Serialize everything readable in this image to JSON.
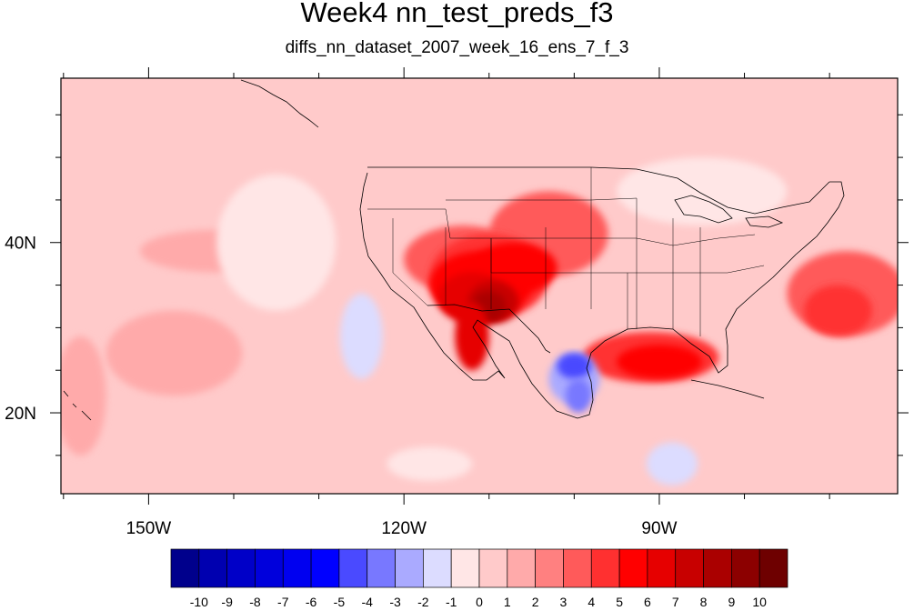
{
  "figure": {
    "title": "Week4 nn_test_preds_f3",
    "subtitle": "diffs_nn_dataset_2007_week_16_ens_7_f_3"
  },
  "chart_data": {
    "type": "heatmap",
    "projection": "cylindrical-equidistant map",
    "lon_range": [
      -160.3,
      -62
    ],
    "lat_range": [
      10.5,
      59.3
    ],
    "x_ticks": [
      {
        "value": -150,
        "label": "150W"
      },
      {
        "value": -120,
        "label": "120W"
      },
      {
        "value": -90,
        "label": "90W"
      }
    ],
    "y_ticks": [
      {
        "value": 20,
        "label": "20N"
      },
      {
        "value": 40,
        "label": "40N"
      }
    ],
    "colorbar": {
      "levels": [
        -10,
        -9,
        -8,
        -7,
        -6,
        -5,
        -4,
        -3,
        -2,
        -1,
        0,
        1,
        2,
        3,
        4,
        5,
        6,
        7,
        8,
        9,
        10
      ],
      "labels": [
        "-10",
        "-9",
        "-8",
        "-7",
        "-6",
        "-5",
        "-4",
        "-3",
        "-2",
        "-1",
        "0",
        "1",
        "2",
        "3",
        "4",
        "5",
        "6",
        "7",
        "8",
        "9",
        "10"
      ],
      "colors": [
        "#00008c",
        "#0000b0",
        "#0000c8",
        "#0000dc",
        "#0000f0",
        "#0000ff",
        "#4a4aff",
        "#7878ff",
        "#aaaaff",
        "#dcdcff",
        "#ffe6e6",
        "#ffcaca",
        "#ffaaaa",
        "#ff8080",
        "#ff5a5a",
        "#ff3030",
        "#ff0000",
        "#e60000",
        "#c80000",
        "#aa0000",
        "#8c0000",
        "#6e0000"
      ]
    },
    "field_blobs": [
      {
        "lon": -103,
        "lat": 41,
        "rx": 7,
        "ry": 5,
        "value": 3
      },
      {
        "lon": -113,
        "lat": 38,
        "rx": 7,
        "ry": 4,
        "value": 3
      },
      {
        "lon": -110,
        "lat": 36,
        "rx": 7,
        "ry": 5,
        "value": 4
      },
      {
        "lon": -111,
        "lat": 35,
        "rx": 6,
        "ry": 4,
        "value": 5
      },
      {
        "lon": -107,
        "lat": 37,
        "rx": 5,
        "ry": 3,
        "value": 5
      },
      {
        "lon": -112,
        "lat": 33.5,
        "rx": 4,
        "ry": 3,
        "value": 6
      },
      {
        "lon": -109.5,
        "lat": 33,
        "rx": 3,
        "ry": 2.5,
        "value": 7
      },
      {
        "lon": -110,
        "lat": 32.5,
        "rx": 2,
        "ry": 1.8,
        "value": 8
      },
      {
        "lon": -112,
        "lat": 29,
        "rx": 2,
        "ry": 4,
        "value": 6
      },
      {
        "lon": -91,
        "lat": 26.5,
        "rx": 8,
        "ry": 3,
        "value": 4
      },
      {
        "lon": -90,
        "lat": 26,
        "rx": 5,
        "ry": 2,
        "value": 5
      },
      {
        "lon": -68,
        "lat": 34,
        "rx": 7,
        "ry": 5,
        "value": 3
      },
      {
        "lon": -69,
        "lat": 32,
        "rx": 4,
        "ry": 3,
        "value": 4
      },
      {
        "lon": -100,
        "lat": 24,
        "rx": 3,
        "ry": 3,
        "value": -3
      },
      {
        "lon": -100,
        "lat": 25.5,
        "rx": 2,
        "ry": 1.5,
        "value": -5
      },
      {
        "lon": -99.5,
        "lat": 22,
        "rx": 1.5,
        "ry": 2,
        "value": -4
      },
      {
        "lon": -125,
        "lat": 29,
        "rx": 2.5,
        "ry": 5,
        "value": -2
      },
      {
        "lon": -88.5,
        "lat": 14,
        "rx": 3,
        "ry": 2.5,
        "value": -2
      },
      {
        "lon": -117,
        "lat": 14,
        "rx": 5,
        "ry": 2,
        "value": -1
      },
      {
        "lon": -147,
        "lat": 27,
        "rx": 8,
        "ry": 5,
        "value": 1
      },
      {
        "lon": -142,
        "lat": 39,
        "rx": 9,
        "ry": 2.5,
        "value": 1
      },
      {
        "lon": -158,
        "lat": 22,
        "rx": 3,
        "ry": 7,
        "value": 1
      },
      {
        "lon": -135,
        "lat": 40,
        "rx": 7,
        "ry": 8,
        "value": -1
      },
      {
        "lon": -85,
        "lat": 46,
        "rx": 10,
        "ry": 4,
        "value": -1
      }
    ]
  }
}
